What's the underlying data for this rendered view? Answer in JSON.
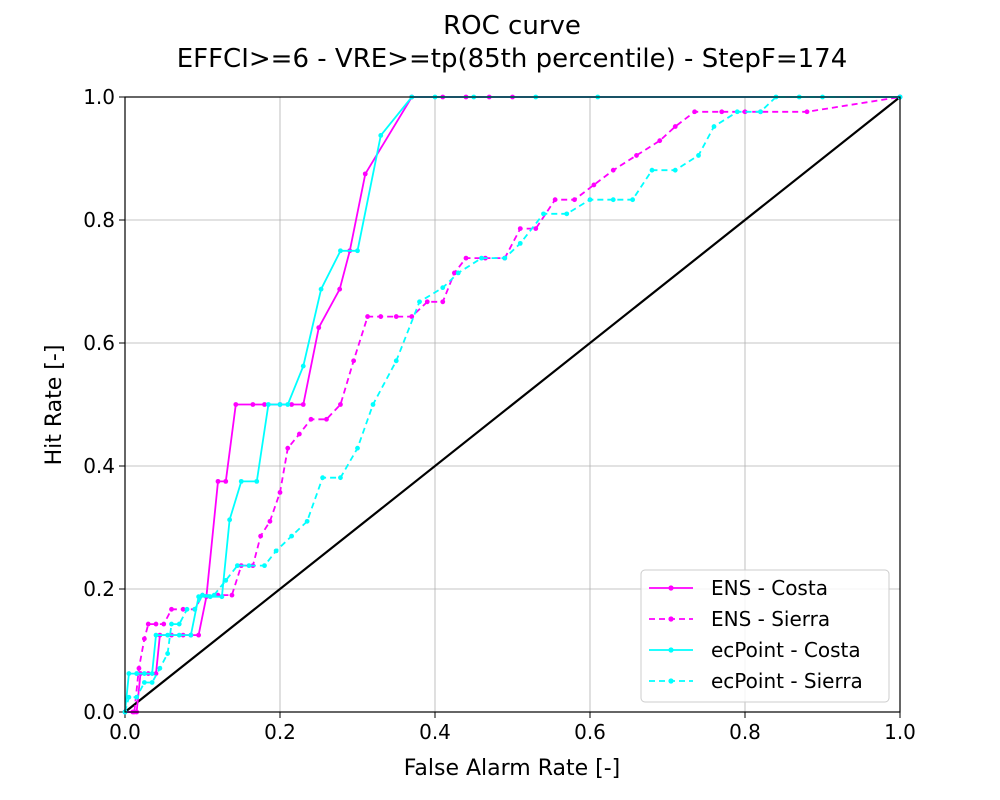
{
  "chart_data": {
    "type": "line",
    "title": "ROC curve",
    "subtitle": "EFFCI>=6 - VRE>=tp(85th percentile) - StepF=174",
    "xlabel": "False Alarm Rate [-]",
    "ylabel": "Hit Rate [-]",
    "xlim": [
      0.0,
      1.0
    ],
    "ylim": [
      0.0,
      1.0
    ],
    "xticks": [
      "0.0",
      "0.2",
      "0.4",
      "0.6",
      "0.8",
      "1.0"
    ],
    "yticks": [
      "0.0",
      "0.2",
      "0.4",
      "0.6",
      "0.8",
      "1.0"
    ],
    "grid": true,
    "legend_position": "bottom-right",
    "reference_line": [
      [
        0,
        0
      ],
      [
        1,
        1
      ]
    ],
    "series": [
      {
        "name": "ENS - Costa",
        "color": "#ff00ff",
        "dash": "solid",
        "points": [
          [
            0.0,
            0.0
          ],
          [
            0.01,
            0.0
          ],
          [
            0.015,
            0.0
          ],
          [
            0.02,
            0.0625
          ],
          [
            0.03,
            0.0625
          ],
          [
            0.04,
            0.0625
          ],
          [
            0.045,
            0.125
          ],
          [
            0.06,
            0.125
          ],
          [
            0.075,
            0.125
          ],
          [
            0.085,
            0.125
          ],
          [
            0.095,
            0.125
          ],
          [
            0.105,
            0.1875
          ],
          [
            0.12,
            0.375
          ],
          [
            0.13,
            0.375
          ],
          [
            0.143,
            0.5
          ],
          [
            0.165,
            0.5
          ],
          [
            0.18,
            0.5
          ],
          [
            0.2,
            0.5
          ],
          [
            0.215,
            0.5
          ],
          [
            0.23,
            0.5
          ],
          [
            0.25,
            0.625
          ],
          [
            0.277,
            0.6875
          ],
          [
            0.29,
            0.75
          ],
          [
            0.31,
            0.875
          ],
          [
            0.37,
            1.0
          ],
          [
            0.41,
            1.0
          ],
          [
            0.44,
            1.0
          ],
          [
            0.47,
            1.0
          ],
          [
            0.5,
            1.0
          ],
          [
            1.0,
            1.0
          ]
        ]
      },
      {
        "name": "ENS - Sierra",
        "color": "#ff00ff",
        "dash": "dashed",
        "points": [
          [
            0.0,
            0.0
          ],
          [
            0.012,
            0.0
          ],
          [
            0.018,
            0.071
          ],
          [
            0.025,
            0.119
          ],
          [
            0.03,
            0.143
          ],
          [
            0.04,
            0.143
          ],
          [
            0.05,
            0.143
          ],
          [
            0.06,
            0.167
          ],
          [
            0.075,
            0.167
          ],
          [
            0.09,
            0.167
          ],
          [
            0.1,
            0.19
          ],
          [
            0.12,
            0.19
          ],
          [
            0.138,
            0.19
          ],
          [
            0.15,
            0.238
          ],
          [
            0.165,
            0.238
          ],
          [
            0.175,
            0.286
          ],
          [
            0.187,
            0.31
          ],
          [
            0.2,
            0.357
          ],
          [
            0.21,
            0.429
          ],
          [
            0.225,
            0.452
          ],
          [
            0.24,
            0.476
          ],
          [
            0.26,
            0.476
          ],
          [
            0.278,
            0.5
          ],
          [
            0.295,
            0.571
          ],
          [
            0.313,
            0.643
          ],
          [
            0.33,
            0.643
          ],
          [
            0.35,
            0.643
          ],
          [
            0.37,
            0.643
          ],
          [
            0.39,
            0.667
          ],
          [
            0.41,
            0.667
          ],
          [
            0.425,
            0.714
          ],
          [
            0.44,
            0.738
          ],
          [
            0.465,
            0.738
          ],
          [
            0.49,
            0.738
          ],
          [
            0.51,
            0.786
          ],
          [
            0.53,
            0.786
          ],
          [
            0.555,
            0.833
          ],
          [
            0.58,
            0.833
          ],
          [
            0.605,
            0.857
          ],
          [
            0.63,
            0.881
          ],
          [
            0.66,
            0.905
          ],
          [
            0.69,
            0.929
          ],
          [
            0.71,
            0.952
          ],
          [
            0.735,
            0.976
          ],
          [
            0.77,
            0.976
          ],
          [
            0.8,
            0.976
          ],
          [
            0.82,
            0.976
          ],
          [
            0.88,
            0.976
          ],
          [
            1.0,
            1.0
          ]
        ]
      },
      {
        "name": "ecPoint - Costa",
        "color": "#00ffff",
        "dash": "solid",
        "points": [
          [
            0.0,
            0.0
          ],
          [
            0.005,
            0.0625
          ],
          [
            0.015,
            0.0625
          ],
          [
            0.025,
            0.0625
          ],
          [
            0.035,
            0.0625
          ],
          [
            0.04,
            0.125
          ],
          [
            0.055,
            0.125
          ],
          [
            0.07,
            0.125
          ],
          [
            0.085,
            0.125
          ],
          [
            0.095,
            0.1875
          ],
          [
            0.11,
            0.1875
          ],
          [
            0.125,
            0.1875
          ],
          [
            0.135,
            0.3125
          ],
          [
            0.15,
            0.375
          ],
          [
            0.17,
            0.375
          ],
          [
            0.185,
            0.5
          ],
          [
            0.2,
            0.5
          ],
          [
            0.21,
            0.5
          ],
          [
            0.23,
            0.5625
          ],
          [
            0.253,
            0.6875
          ],
          [
            0.278,
            0.75
          ],
          [
            0.3,
            0.75
          ],
          [
            0.33,
            0.9375
          ],
          [
            0.37,
            1.0
          ],
          [
            0.4,
            1.0
          ],
          [
            0.45,
            1.0
          ],
          [
            0.53,
            1.0
          ],
          [
            0.61,
            1.0
          ],
          [
            1.0,
            1.0
          ]
        ]
      },
      {
        "name": "ecPoint - Sierra",
        "color": "#00ffff",
        "dash": "dashed",
        "points": [
          [
            0.0,
            0.0
          ],
          [
            0.005,
            0.024
          ],
          [
            0.015,
            0.024
          ],
          [
            0.025,
            0.048
          ],
          [
            0.035,
            0.048
          ],
          [
            0.045,
            0.071
          ],
          [
            0.055,
            0.095
          ],
          [
            0.06,
            0.143
          ],
          [
            0.07,
            0.143
          ],
          [
            0.08,
            0.167
          ],
          [
            0.09,
            0.167
          ],
          [
            0.1,
            0.19
          ],
          [
            0.115,
            0.19
          ],
          [
            0.13,
            0.214
          ],
          [
            0.145,
            0.238
          ],
          [
            0.16,
            0.238
          ],
          [
            0.18,
            0.238
          ],
          [
            0.195,
            0.262
          ],
          [
            0.215,
            0.286
          ],
          [
            0.235,
            0.31
          ],
          [
            0.255,
            0.381
          ],
          [
            0.278,
            0.381
          ],
          [
            0.3,
            0.429
          ],
          [
            0.32,
            0.5
          ],
          [
            0.35,
            0.571
          ],
          [
            0.38,
            0.667
          ],
          [
            0.41,
            0.69
          ],
          [
            0.43,
            0.714
          ],
          [
            0.46,
            0.738
          ],
          [
            0.49,
            0.738
          ],
          [
            0.51,
            0.762
          ],
          [
            0.54,
            0.81
          ],
          [
            0.57,
            0.81
          ],
          [
            0.6,
            0.833
          ],
          [
            0.63,
            0.833
          ],
          [
            0.655,
            0.833
          ],
          [
            0.68,
            0.881
          ],
          [
            0.71,
            0.881
          ],
          [
            0.74,
            0.905
          ],
          [
            0.76,
            0.952
          ],
          [
            0.79,
            0.976
          ],
          [
            0.82,
            0.976
          ],
          [
            0.84,
            1.0
          ],
          [
            0.87,
            1.0
          ],
          [
            0.9,
            1.0
          ],
          [
            1.0,
            1.0
          ]
        ]
      }
    ]
  }
}
